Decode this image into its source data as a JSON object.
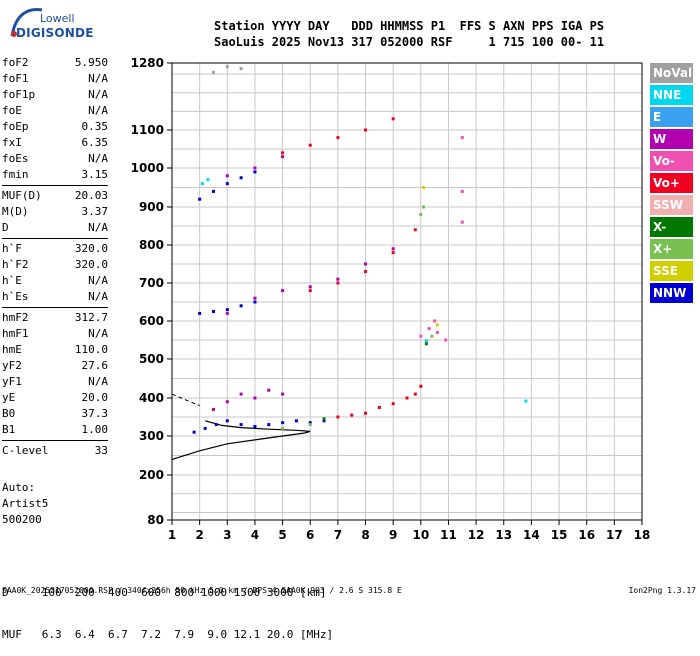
{
  "logo": {
    "line1": "Lowell",
    "line2": "DIGISONDE"
  },
  "header": {
    "line1": "Station YYYY DAY   DDD HHMMSS P1  FFS S AXN PPS IGA PS",
    "line2": "SaoLuis 2025 Nov13 317 052000 RSF     1 715 100 00- 11"
  },
  "params": [
    {
      "label": "foF2",
      "value": "5.950"
    },
    {
      "label": "foF1",
      "value": "N/A"
    },
    {
      "label": "foF1p",
      "value": "N/A"
    },
    {
      "label": "foE",
      "value": "N/A"
    },
    {
      "label": "foEp",
      "value": "0.35"
    },
    {
      "label": "fxI",
      "value": "6.35"
    },
    {
      "label": "foEs",
      "value": "N/A"
    },
    {
      "label": "fmin",
      "value": "3.15"
    },
    {
      "label": "MUF(D)",
      "value": "20.03",
      "sep": true
    },
    {
      "label": "M(D)",
      "value": "3.37"
    },
    {
      "label": "D",
      "value": "N/A"
    },
    {
      "label": "h`F",
      "value": "320.0",
      "sep": true
    },
    {
      "label": "h`F2",
      "value": "320.0"
    },
    {
      "label": "h`E",
      "value": "N/A"
    },
    {
      "label": "h`Es",
      "value": "N/A"
    },
    {
      "label": "hmF2",
      "value": "312.7",
      "sep": true
    },
    {
      "label": "hmF1",
      "value": "N/A"
    },
    {
      "label": "hmE",
      "value": "110.0"
    },
    {
      "label": "yF2",
      "value": "27.6"
    },
    {
      "label": "yF1",
      "value": "N/A"
    },
    {
      "label": "yE",
      "value": "20.0"
    },
    {
      "label": "B0",
      "value": "37.3"
    },
    {
      "label": "B1",
      "value": "1.00"
    },
    {
      "label": "C-level",
      "value": "33",
      "sep": true
    }
  ],
  "auto": {
    "line1": "Auto:",
    "line2": "Artist5",
    "line3": "500200"
  },
  "muf_table": {
    "d_label": "D",
    "d_values": "100  200  400  600  800 1000 1500 3000 [km]",
    "muf_label": "MUF",
    "muf_values": "6.3  6.4  6.7  7.2  7.9  9.0 12.1 20.0 [MHz]"
  },
  "footer": {
    "left": "SAA0K_2025317052000.RSF / 340fx256h 50 kHz 5.0 km / DPS-4 SAA0K 903 / 2.6 S 315.8 E",
    "right": "Ion2Png 1.3.17"
  },
  "legend": [
    {
      "name": "NoVal",
      "color": "#a0a0a0"
    },
    {
      "name": "NNE",
      "color": "#00d8f0"
    },
    {
      "name": "E",
      "color": "#3aa0f0"
    },
    {
      "name": "W",
      "color": "#b000b0"
    },
    {
      "name": "Vo-",
      "color": "#f050b0"
    },
    {
      "name": "Vo+",
      "color": "#f00020"
    },
    {
      "name": "SSW",
      "color": "#f0b0b0"
    },
    {
      "name": "X-",
      "color": "#007800"
    },
    {
      "name": "X+",
      "color": "#78c050"
    },
    {
      "name": "SSE",
      "color": "#d0d000"
    },
    {
      "name": "NNW",
      "color": "#0000d0"
    }
  ],
  "chart_data": {
    "type": "scatter",
    "title": "",
    "xlabel": "",
    "ylabel": "",
    "xlim": [
      1,
      18
    ],
    "ylim": [
      80,
      1280
    ],
    "x_ticks": [
      "1",
      "2",
      "3",
      "4",
      "5",
      "6",
      "7",
      "8",
      "9",
      "10",
      "11",
      "12",
      "13",
      "14",
      "15",
      "16",
      "17",
      "18"
    ],
    "y_ticks": [
      "80",
      "200",
      "300",
      "400",
      "500",
      "600",
      "700",
      "800",
      "900",
      "1000",
      "1100",
      "1280"
    ],
    "grid": true,
    "legend_position": "right",
    "series": [
      {
        "name": "NNW",
        "color": "#0000d0",
        "points": [
          [
            1.8,
            310
          ],
          [
            2.2,
            320
          ],
          [
            2.6,
            330
          ],
          [
            3.0,
            340
          ],
          [
            3.5,
            330
          ],
          [
            4.0,
            325
          ],
          [
            4.5,
            330
          ],
          [
            5.0,
            335
          ],
          [
            5.5,
            340
          ],
          [
            6.0,
            335
          ],
          [
            6.5,
            340
          ],
          [
            2.0,
            620
          ],
          [
            2.5,
            625
          ],
          [
            3.0,
            630
          ],
          [
            3.5,
            640
          ],
          [
            4.0,
            650
          ],
          [
            2.0,
            920
          ],
          [
            2.5,
            940
          ],
          [
            3.0,
            960
          ],
          [
            3.5,
            975
          ],
          [
            4.0,
            990
          ]
        ]
      },
      {
        "name": "Vo+",
        "color": "#f00020",
        "points": [
          [
            7.0,
            350
          ],
          [
            7.5,
            355
          ],
          [
            8.0,
            360
          ],
          [
            8.5,
            375
          ],
          [
            9.0,
            385
          ],
          [
            9.5,
            400
          ],
          [
            9.8,
            410
          ],
          [
            10.0,
            430
          ],
          [
            6.0,
            680
          ],
          [
            7.0,
            700
          ],
          [
            8.0,
            730
          ],
          [
            9.0,
            780
          ],
          [
            9.8,
            840
          ],
          [
            5.0,
            1040
          ],
          [
            6.0,
            1060
          ],
          [
            7.0,
            1080
          ],
          [
            8.0,
            1100
          ],
          [
            9.0,
            1130
          ]
        ]
      },
      {
        "name": "W",
        "color": "#b000b0",
        "points": [
          [
            2.5,
            370
          ],
          [
            3.0,
            390
          ],
          [
            3.5,
            410
          ],
          [
            4.0,
            400
          ],
          [
            4.5,
            420
          ],
          [
            5.0,
            410
          ],
          [
            3.0,
            620
          ],
          [
            4.0,
            660
          ],
          [
            5.0,
            680
          ],
          [
            6.0,
            690
          ],
          [
            7.0,
            710
          ],
          [
            8.0,
            750
          ],
          [
            9.0,
            790
          ],
          [
            3.0,
            980
          ],
          [
            4.0,
            1000
          ],
          [
            5.0,
            1030
          ]
        ]
      },
      {
        "name": "Vo-",
        "color": "#f050b0",
        "points": [
          [
            10.0,
            560
          ],
          [
            10.3,
            580
          ],
          [
            10.6,
            570
          ],
          [
            10.9,
            550
          ],
          [
            10.5,
            600
          ],
          [
            11.5,
            1080
          ],
          [
            11.5,
            940
          ],
          [
            11.5,
            860
          ]
        ]
      },
      {
        "name": "NNE",
        "color": "#00d8f0",
        "points": [
          [
            2.1,
            960
          ],
          [
            2.3,
            970
          ],
          [
            13.8,
            392
          ],
          [
            10.2,
            548
          ]
        ]
      },
      {
        "name": "X+",
        "color": "#78c050",
        "points": [
          [
            5.0,
            320
          ],
          [
            6.0,
            330
          ],
          [
            10.0,
            880
          ],
          [
            10.1,
            900
          ],
          [
            10.4,
            560
          ]
        ]
      },
      {
        "name": "SSE",
        "color": "#d0d000",
        "points": [
          [
            10.1,
            950
          ],
          [
            10.6,
            590
          ]
        ]
      },
      {
        "name": "X-",
        "color": "#007800",
        "points": [
          [
            6.5,
            345
          ],
          [
            10.2,
            540
          ]
        ]
      },
      {
        "name": "NoVal",
        "color": "#a0a0a0",
        "points": [
          [
            3.0,
            1270
          ],
          [
            3.5,
            1265
          ],
          [
            2.5,
            1255
          ]
        ]
      }
    ],
    "trace": {
      "name": "virtual height profile",
      "color": "#000000",
      "points": [
        [
          1.0,
          240
        ],
        [
          2.0,
          262
        ],
        [
          3.0,
          280
        ],
        [
          4.0,
          290
        ],
        [
          5.0,
          300
        ],
        [
          5.8,
          308
        ],
        [
          6.0,
          312
        ],
        [
          5.5,
          315
        ],
        [
          4.5,
          318
        ],
        [
          3.5,
          322
        ],
        [
          2.8,
          328
        ],
        [
          2.2,
          340
        ]
      ]
    },
    "trace_dashed": {
      "color": "#000000",
      "points": [
        [
          1.0,
          410
        ],
        [
          1.5,
          395
        ],
        [
          2.0,
          380
        ]
      ]
    }
  }
}
